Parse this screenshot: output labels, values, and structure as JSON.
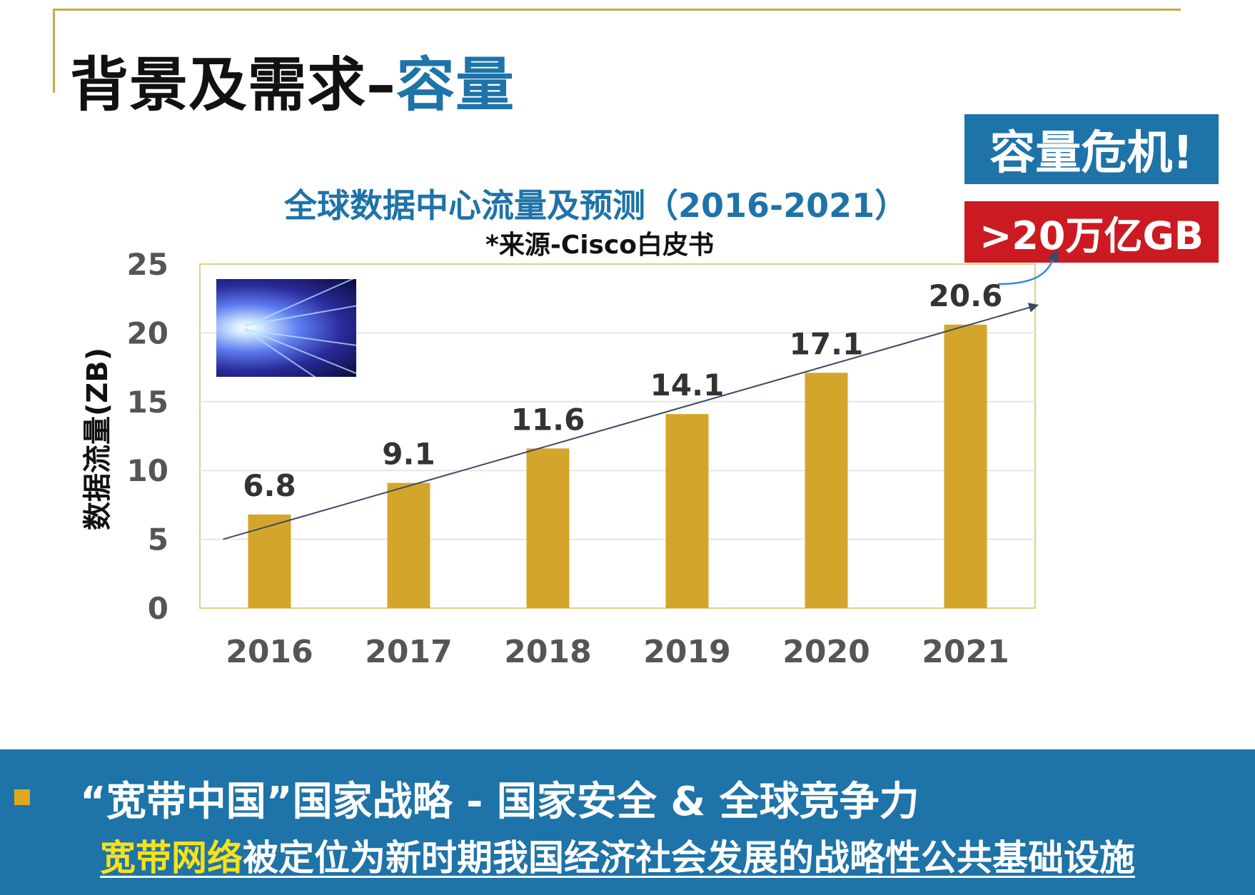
{
  "slide": {
    "title_main": "背景及需求–",
    "title_highlight": "容量"
  },
  "badges": {
    "crisis": "容量危机!",
    "amount": ">20万亿GB"
  },
  "footer": {
    "line1": "“宽带中国”国家战略 - 国家安全 & 全球竞争力",
    "line2_highlight": "宽带网络",
    "line2_rest": "被定位为新时期我国经济社会发展的战略性公共基础设施"
  },
  "colors": {
    "bar": "#d4a52b",
    "accent_blue": "#1e73a8",
    "accent_red": "#cc1a22",
    "highlight_yellow": "#f5e21a"
  },
  "chart_data": {
    "type": "bar",
    "title": "全球数据中心流量及预测（2016-2021）",
    "subtitle": "*来源-Cisco白皮书",
    "xlabel": "",
    "ylabel": "数据流量(ZB)",
    "categories": [
      "2016",
      "2017",
      "2018",
      "2019",
      "2020",
      "2021"
    ],
    "values": [
      6.8,
      9.1,
      11.6,
      14.1,
      17.1,
      20.6
    ],
    "data_labels": [
      "6.8",
      "9.1",
      "11.6",
      "14.1",
      "17.1",
      "20.6"
    ],
    "ylim": [
      0,
      25
    ],
    "yticks": [
      "0",
      "5",
      "10",
      "15",
      "20",
      "25"
    ],
    "grid": true,
    "legend": "none",
    "trendline": {
      "from": [
        2016,
        5
      ],
      "to": [
        2021,
        22
      ]
    }
  }
}
